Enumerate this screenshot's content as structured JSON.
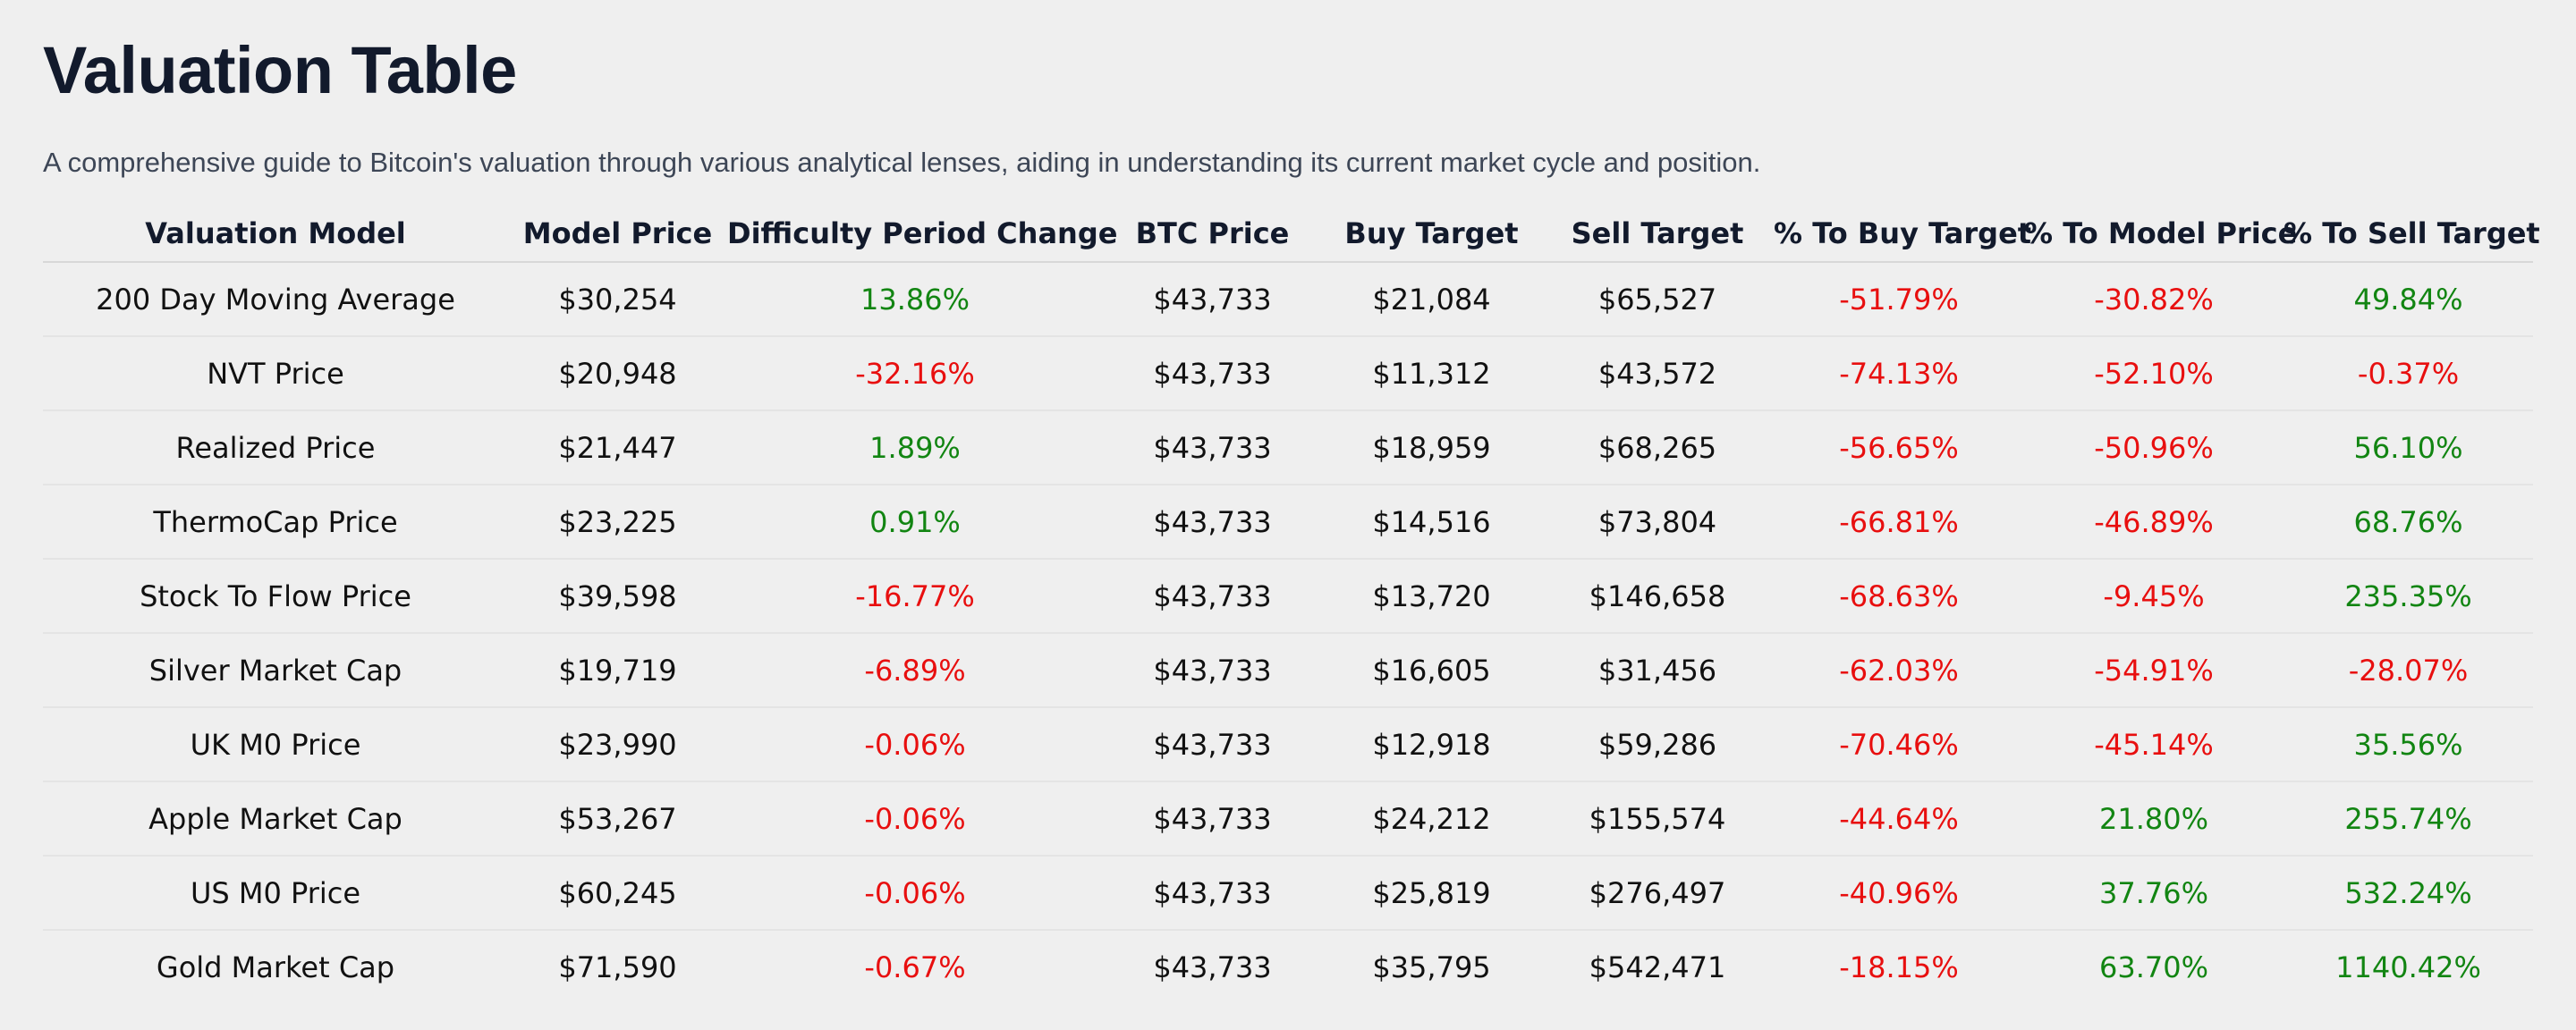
{
  "page": {
    "title": "Valuation Table",
    "subtitle": "A comprehensive guide to Bitcoin's valuation through various analytical lenses, aiding in understanding its current market cycle and position."
  },
  "colors": {
    "positive": "#128512",
    "negative": "#e80f0f",
    "heading": "#121a2c",
    "background": "#efefef"
  },
  "table": {
    "headers": [
      "Valuation Model",
      "Model Price",
      "Difficulty Period Change",
      "BTC Price",
      "Buy Target",
      "Sell Target",
      "% To Buy Target",
      "% To Model Price",
      "% To Sell Target"
    ],
    "rows": [
      [
        "200 Day Moving Average",
        "$30,254",
        "13.86%",
        "$43,733",
        "$21,084",
        "$65,527",
        "-51.79%",
        "-30.82%",
        "49.84%"
      ],
      [
        "NVT Price",
        "$20,948",
        "-32.16%",
        "$43,733",
        "$11,312",
        "$43,572",
        "-74.13%",
        "-52.10%",
        "-0.37%"
      ],
      [
        "Realized Price",
        "$21,447",
        "1.89%",
        "$43,733",
        "$18,959",
        "$68,265",
        "-56.65%",
        "-50.96%",
        "56.10%"
      ],
      [
        "ThermoCap Price",
        "$23,225",
        "0.91%",
        "$43,733",
        "$14,516",
        "$73,804",
        "-66.81%",
        "-46.89%",
        "68.76%"
      ],
      [
        "Stock To Flow Price",
        "$39,598",
        "-16.77%",
        "$43,733",
        "$13,720",
        "$146,658",
        "-68.63%",
        "-9.45%",
        "235.35%"
      ],
      [
        "Silver Market Cap",
        "$19,719",
        "-6.89%",
        "$43,733",
        "$16,605",
        "$31,456",
        "-62.03%",
        "-54.91%",
        "-28.07%"
      ],
      [
        "UK M0 Price",
        "$23,990",
        "-0.06%",
        "$43,733",
        "$12,918",
        "$59,286",
        "-70.46%",
        "-45.14%",
        "35.56%"
      ],
      [
        "Apple Market Cap",
        "$53,267",
        "-0.06%",
        "$43,733",
        "$24,212",
        "$155,574",
        "-44.64%",
        "21.80%",
        "255.74%"
      ],
      [
        "US M0 Price",
        "$60,245",
        "-0.06%",
        "$43,733",
        "$25,819",
        "$276,497",
        "-40.96%",
        "37.76%",
        "532.24%"
      ],
      [
        "Gold Market Cap",
        "$71,590",
        "-0.67%",
        "$43,733",
        "$35,795",
        "$542,471",
        "-18.15%",
        "63.70%",
        "1140.42%"
      ]
    ]
  }
}
